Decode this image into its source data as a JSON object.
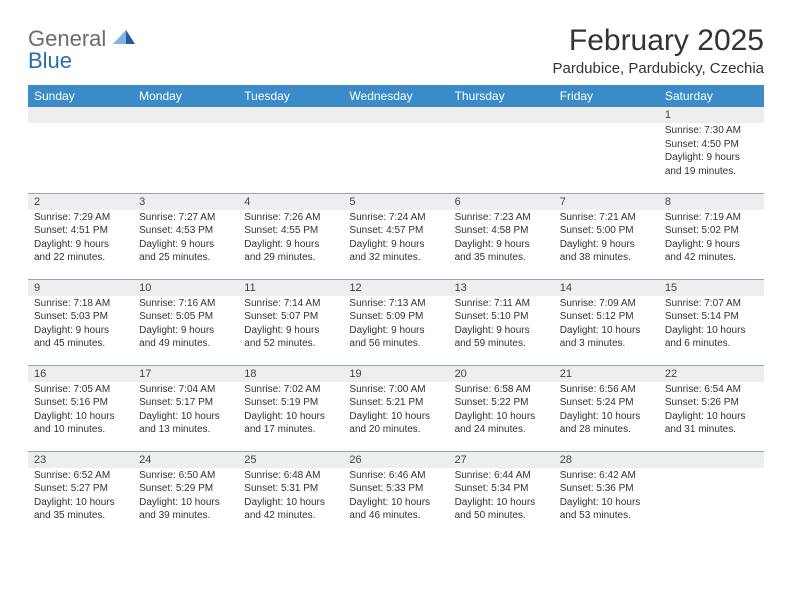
{
  "brand": {
    "text_gray": "General",
    "text_blue": "Blue"
  },
  "title": "February 2025",
  "location": "Pardubice, Pardubicky, Czechia",
  "colors": {
    "header_bg": "#3b8bc9",
    "header_text": "#ffffff",
    "daynum_bg": "#eeeeee",
    "row_divider": "#8aa8c0",
    "logo_gray": "#6b6b6b",
    "logo_blue": "#2a6cb0",
    "tri_light": "#7db3e0",
    "tri_dark": "#1f5f9e"
  },
  "day_headers": [
    "Sunday",
    "Monday",
    "Tuesday",
    "Wednesday",
    "Thursday",
    "Friday",
    "Saturday"
  ],
  "weeks": [
    [
      null,
      null,
      null,
      null,
      null,
      null,
      {
        "n": "1",
        "sr": "7:30 AM",
        "ss": "4:50 PM",
        "dl": "9 hours and 19 minutes."
      }
    ],
    [
      {
        "n": "2",
        "sr": "7:29 AM",
        "ss": "4:51 PM",
        "dl": "9 hours and 22 minutes."
      },
      {
        "n": "3",
        "sr": "7:27 AM",
        "ss": "4:53 PM",
        "dl": "9 hours and 25 minutes."
      },
      {
        "n": "4",
        "sr": "7:26 AM",
        "ss": "4:55 PM",
        "dl": "9 hours and 29 minutes."
      },
      {
        "n": "5",
        "sr": "7:24 AM",
        "ss": "4:57 PM",
        "dl": "9 hours and 32 minutes."
      },
      {
        "n": "6",
        "sr": "7:23 AM",
        "ss": "4:58 PM",
        "dl": "9 hours and 35 minutes."
      },
      {
        "n": "7",
        "sr": "7:21 AM",
        "ss": "5:00 PM",
        "dl": "9 hours and 38 minutes."
      },
      {
        "n": "8",
        "sr": "7:19 AM",
        "ss": "5:02 PM",
        "dl": "9 hours and 42 minutes."
      }
    ],
    [
      {
        "n": "9",
        "sr": "7:18 AM",
        "ss": "5:03 PM",
        "dl": "9 hours and 45 minutes."
      },
      {
        "n": "10",
        "sr": "7:16 AM",
        "ss": "5:05 PM",
        "dl": "9 hours and 49 minutes."
      },
      {
        "n": "11",
        "sr": "7:14 AM",
        "ss": "5:07 PM",
        "dl": "9 hours and 52 minutes."
      },
      {
        "n": "12",
        "sr": "7:13 AM",
        "ss": "5:09 PM",
        "dl": "9 hours and 56 minutes."
      },
      {
        "n": "13",
        "sr": "7:11 AM",
        "ss": "5:10 PM",
        "dl": "9 hours and 59 minutes."
      },
      {
        "n": "14",
        "sr": "7:09 AM",
        "ss": "5:12 PM",
        "dl": "10 hours and 3 minutes."
      },
      {
        "n": "15",
        "sr": "7:07 AM",
        "ss": "5:14 PM",
        "dl": "10 hours and 6 minutes."
      }
    ],
    [
      {
        "n": "16",
        "sr": "7:05 AM",
        "ss": "5:16 PM",
        "dl": "10 hours and 10 minutes."
      },
      {
        "n": "17",
        "sr": "7:04 AM",
        "ss": "5:17 PM",
        "dl": "10 hours and 13 minutes."
      },
      {
        "n": "18",
        "sr": "7:02 AM",
        "ss": "5:19 PM",
        "dl": "10 hours and 17 minutes."
      },
      {
        "n": "19",
        "sr": "7:00 AM",
        "ss": "5:21 PM",
        "dl": "10 hours and 20 minutes."
      },
      {
        "n": "20",
        "sr": "6:58 AM",
        "ss": "5:22 PM",
        "dl": "10 hours and 24 minutes."
      },
      {
        "n": "21",
        "sr": "6:56 AM",
        "ss": "5:24 PM",
        "dl": "10 hours and 28 minutes."
      },
      {
        "n": "22",
        "sr": "6:54 AM",
        "ss": "5:26 PM",
        "dl": "10 hours and 31 minutes."
      }
    ],
    [
      {
        "n": "23",
        "sr": "6:52 AM",
        "ss": "5:27 PM",
        "dl": "10 hours and 35 minutes."
      },
      {
        "n": "24",
        "sr": "6:50 AM",
        "ss": "5:29 PM",
        "dl": "10 hours and 39 minutes."
      },
      {
        "n": "25",
        "sr": "6:48 AM",
        "ss": "5:31 PM",
        "dl": "10 hours and 42 minutes."
      },
      {
        "n": "26",
        "sr": "6:46 AM",
        "ss": "5:33 PM",
        "dl": "10 hours and 46 minutes."
      },
      {
        "n": "27",
        "sr": "6:44 AM",
        "ss": "5:34 PM",
        "dl": "10 hours and 50 minutes."
      },
      {
        "n": "28",
        "sr": "6:42 AM",
        "ss": "5:36 PM",
        "dl": "10 hours and 53 minutes."
      },
      null
    ]
  ],
  "labels": {
    "sunrise_prefix": "Sunrise: ",
    "sunset_prefix": "Sunset: ",
    "daylight_prefix": "Daylight: "
  }
}
